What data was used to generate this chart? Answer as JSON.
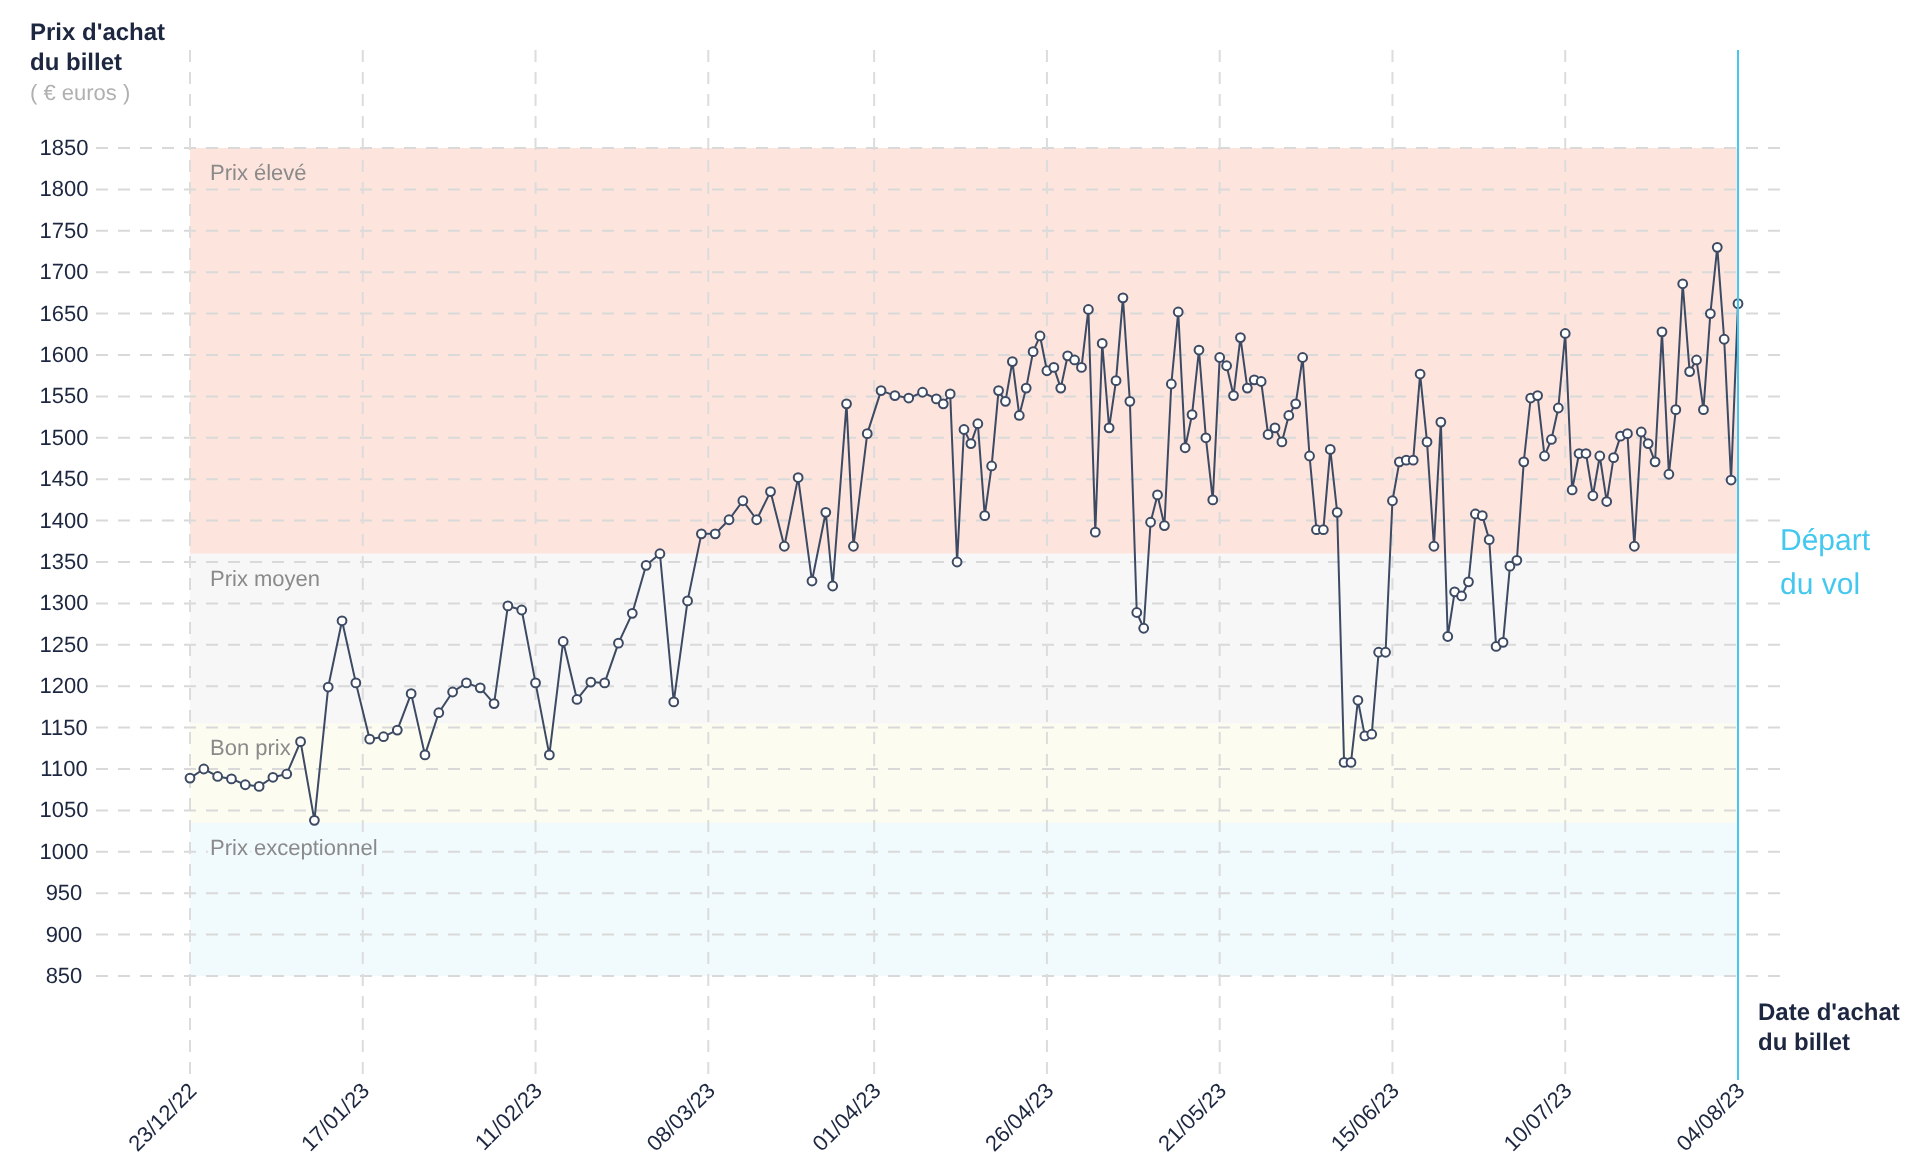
{
  "chart_data": {
    "type": "line",
    "ylabel": "Prix d'achat du billet",
    "xlabel": "Date d'achat du billet",
    "annotations": [
      "( € euros )"
    ],
    "x": [
      "2022-12-23",
      "2022-12-25",
      "2022-12-27",
      "2022-12-29",
      "2022-12-31",
      "2023-01-02",
      "2023-01-04",
      "2023-01-06",
      "2023-01-08",
      "2023-01-10",
      "2023-01-12",
      "2023-01-14",
      "2023-01-16",
      "2023-01-18",
      "2023-01-20",
      "2023-01-22",
      "2023-01-24",
      "2023-01-26",
      "2023-01-28",
      "2023-01-30",
      "2023-02-01",
      "2023-02-03",
      "2023-02-05",
      "2023-02-07",
      "2023-02-09",
      "2023-02-11",
      "2023-02-13",
      "2023-02-15",
      "2023-02-17",
      "2023-02-19",
      "2023-02-21",
      "2023-02-23",
      "2023-02-25",
      "2023-02-27",
      "2023-03-01",
      "2023-03-03",
      "2023-03-05",
      "2023-03-07",
      "2023-03-09",
      "2023-03-11",
      "2023-03-13",
      "2023-03-15",
      "2023-03-17",
      "2023-03-19",
      "2023-03-21",
      "2023-03-23",
      "2023-03-25",
      "2023-03-26",
      "2023-03-28",
      "2023-03-29",
      "2023-03-31",
      "2023-04-02",
      "2023-04-04",
      "2023-04-06",
      "2023-04-08",
      "2023-04-10",
      "2023-04-11",
      "2023-04-12",
      "2023-04-13",
      "2023-04-14",
      "2023-04-15",
      "2023-04-16",
      "2023-04-17",
      "2023-04-18",
      "2023-04-19",
      "2023-04-20",
      "2023-04-21",
      "2023-04-22",
      "2023-04-23",
      "2023-04-24",
      "2023-04-25",
      "2023-04-26",
      "2023-04-27",
      "2023-04-28",
      "2023-04-29",
      "2023-04-30",
      "2023-05-01",
      "2023-05-02",
      "2023-05-03",
      "2023-05-04",
      "2023-05-05",
      "2023-05-06",
      "2023-05-07",
      "2023-05-08",
      "2023-05-09",
      "2023-05-10",
      "2023-05-11",
      "2023-05-12",
      "2023-05-13",
      "2023-05-14",
      "2023-05-15",
      "2023-05-16",
      "2023-05-17",
      "2023-05-18",
      "2023-05-19",
      "2023-05-20",
      "2023-05-21",
      "2023-05-22",
      "2023-05-23",
      "2023-05-24",
      "2023-05-25",
      "2023-05-26",
      "2023-05-27",
      "2023-05-28",
      "2023-05-29",
      "2023-05-30",
      "2023-05-31",
      "2023-06-01",
      "2023-06-02",
      "2023-06-03",
      "2023-06-04",
      "2023-06-05",
      "2023-06-06",
      "2023-06-07",
      "2023-06-08",
      "2023-06-09",
      "2023-06-10",
      "2023-06-11",
      "2023-06-12",
      "2023-06-13",
      "2023-06-14",
      "2023-06-15",
      "2023-06-16",
      "2023-06-17",
      "2023-06-18",
      "2023-06-19",
      "2023-06-20",
      "2023-06-21",
      "2023-06-22",
      "2023-06-23",
      "2023-06-24",
      "2023-06-25",
      "2023-06-26",
      "2023-06-27",
      "2023-06-28",
      "2023-06-29",
      "2023-06-30",
      "2023-07-01",
      "2023-07-02",
      "2023-07-03",
      "2023-07-04",
      "2023-07-05",
      "2023-07-06",
      "2023-07-07",
      "2023-07-08",
      "2023-07-09",
      "2023-07-10",
      "2023-07-11",
      "2023-07-12",
      "2023-07-13",
      "2023-07-14",
      "2023-07-15",
      "2023-07-16",
      "2023-07-17",
      "2023-07-18",
      "2023-07-19",
      "2023-07-20",
      "2023-07-21",
      "2023-07-22",
      "2023-07-23",
      "2023-07-24",
      "2023-07-25",
      "2023-07-26",
      "2023-07-27",
      "2023-07-28",
      "2023-07-29",
      "2023-07-30",
      "2023-07-31",
      "2023-08-01",
      "2023-08-02",
      "2023-08-03",
      "2023-08-04"
    ],
    "series": [
      {
        "color": "#3d4a63",
        "values": [
          1089,
          1100,
          1091,
          1088,
          1081,
          1079,
          1090,
          1094,
          1133,
          1038,
          1199,
          1279,
          1204,
          1136,
          1139,
          1147,
          1191,
          1117,
          1168,
          1193,
          1204,
          1198,
          1179,
          1297,
          1292,
          1204,
          1117,
          1254,
          1184,
          1205,
          1204,
          1252,
          1288,
          1346,
          1360,
          1181,
          1303,
          1384,
          1384,
          1401,
          1424,
          1401,
          1435,
          1369,
          1452,
          1327,
          1410,
          1321,
          1541,
          1369,
          1505,
          1557,
          1551,
          1548,
          1555,
          1547,
          1541,
          1553,
          1350,
          1510,
          1493,
          1517,
          1406,
          1466,
          1557,
          1544,
          1592,
          1527,
          1560,
          1604,
          1623,
          1581,
          1585,
          1560,
          1599,
          1594,
          1585,
          1655,
          1386,
          1614,
          1512,
          1569,
          1669,
          1544,
          1289,
          1270,
          1398,
          1431,
          1394,
          1565,
          1652,
          1488,
          1528,
          1606,
          1500,
          1425,
          1597,
          1587,
          1551,
          1621,
          1560,
          1570,
          1568,
          1504,
          1512,
          1495,
          1527,
          1541,
          1597,
          1478,
          1389,
          1389,
          1486,
          1410,
          1108,
          1108,
          1183,
          1140,
          1142,
          1241,
          1241,
          1424,
          1471,
          1473,
          1473,
          1577,
          1495,
          1369,
          1519,
          1260,
          1314,
          1309,
          1326,
          1408,
          1406,
          1377,
          1248,
          1253,
          1345,
          1352,
          1471,
          1548,
          1551,
          1478,
          1498,
          1536,
          1626,
          1437,
          1481,
          1481,
          1430,
          1478,
          1423,
          1476,
          1502,
          1505,
          1369,
          1507,
          1493,
          1471,
          1628,
          1456,
          1534,
          1686,
          1580,
          1594,
          1534,
          1650,
          1730,
          1619,
          1449,
          1662
        ]
      }
    ],
    "xlim": [
      "2022-12-23",
      "2023-08-04"
    ],
    "xticks": [
      {
        "value": "2022-12-23",
        "label": "23/12/22"
      },
      {
        "value": "2023-01-17",
        "label": "17/01/23"
      },
      {
        "value": "2023-02-11",
        "label": "11/02/23"
      },
      {
        "value": "2023-03-08",
        "label": "08/03/23"
      },
      {
        "value": "2023-04-01",
        "label": "01/04/23"
      },
      {
        "value": "2023-04-26",
        "label": "26/04/23"
      },
      {
        "value": "2023-05-21",
        "label": "21/05/23"
      },
      {
        "value": "2023-06-15",
        "label": "15/06/23"
      },
      {
        "value": "2023-07-10",
        "label": "10/07/23"
      },
      {
        "value": "2023-08-04",
        "label": "04/08/23"
      }
    ],
    "ylim": [
      850,
      1850
    ],
    "yticks": [
      850,
      900,
      950,
      1000,
      1050,
      1100,
      1150,
      1200,
      1250,
      1300,
      1350,
      1400,
      1450,
      1500,
      1550,
      1600,
      1650,
      1700,
      1750,
      1800,
      1850
    ],
    "bands": [
      {
        "axis": "y",
        "from": 1360,
        "to": 1850,
        "label": "Prix élevé",
        "color": "#fde4dd"
      },
      {
        "axis": "y",
        "from": 1155,
        "to": 1360,
        "label": "Prix moyen",
        "color": "#f7f7f7"
      },
      {
        "axis": "y",
        "from": 1035,
        "to": 1155,
        "label": "Bon prix",
        "color": "#fcfcf1"
      },
      {
        "axis": "y",
        "from": 850,
        "to": 1035,
        "label": "Prix exceptionnel",
        "color": "#f1fafd"
      }
    ],
    "ref_lines": [
      {
        "axis": "x",
        "value": "2023-08-04",
        "label": "Départ du vol",
        "color": "#45c8ef"
      }
    ],
    "grid": true,
    "marker": "circle",
    "line_style": "solid"
  }
}
